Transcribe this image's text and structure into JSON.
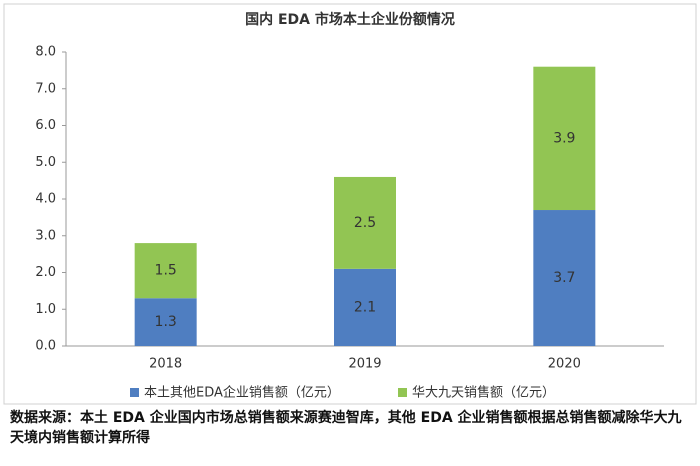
{
  "chart_data": {
    "type": "stacked_bar",
    "title": "国内 EDA 市场本土企业份额情况",
    "categories": [
      "2018",
      "2019",
      "2020"
    ],
    "series": [
      {
        "name": "本土其他EDA企业销售额（亿元）",
        "color": "#4f7ec1",
        "values": [
          1.3,
          2.1,
          3.7
        ]
      },
      {
        "name": "华大九天销售额（亿元）",
        "color": "#92c553",
        "values": [
          1.5,
          2.5,
          3.9
        ]
      }
    ],
    "ylim": [
      0,
      8
    ],
    "yticks": [
      {
        "value": 0,
        "label": "0.0"
      },
      {
        "value": 1,
        "label": "1.0"
      },
      {
        "value": 2,
        "label": "2.0"
      },
      {
        "value": 3,
        "label": "3.0"
      },
      {
        "value": 4,
        "label": "4.0"
      },
      {
        "value": 5,
        "label": "5.0"
      },
      {
        "value": 6,
        "label": "6.0"
      },
      {
        "value": 7,
        "label": "7.0"
      },
      {
        "value": 8,
        "label": "8.0"
      }
    ],
    "grid": false,
    "legend": "bottom"
  },
  "source_note": "数据来源：本土 EDA 企业国内市场总销售额来源赛迪智库，其他 EDA 企业销售额根据总销售额减除华大九天境内销售额计算所得"
}
